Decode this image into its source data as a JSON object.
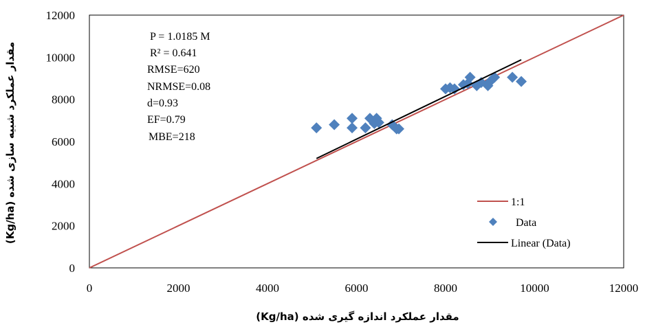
{
  "chart_data": {
    "type": "scatter",
    "xlabel": "مقدار عملکرد اندازه گیری شده (Kg/ha)",
    "ylabel": "مقدار عملکرد شبیه سازی شده (Kg/ha)",
    "xlim": [
      0,
      12000
    ],
    "ylim": [
      0,
      12000
    ],
    "xticks": [
      "0",
      "2000",
      "4000",
      "6000",
      "8000",
      "10000",
      "12000"
    ],
    "yticks": [
      "0",
      "2000",
      "4000",
      "6000",
      "8000",
      "10000",
      "12000"
    ],
    "grid": false,
    "legend_position": "bottom-right",
    "series": [
      {
        "name": "1:1",
        "kind": "line",
        "color": "#c0504d",
        "x": [
          0,
          12000
        ],
        "y": [
          0,
          12000
        ]
      },
      {
        "name": "Data",
        "kind": "scatter",
        "marker": "diamond",
        "color": "#4f81bd",
        "x": [
          5100,
          5500,
          5900,
          5900,
          6200,
          6300,
          6400,
          6450,
          6500,
          6800,
          6900,
          6950,
          8000,
          8100,
          8200,
          8400,
          8500,
          8550,
          8700,
          8800,
          8950,
          9000,
          9100,
          9500,
          9700
        ],
        "y": [
          6650,
          6800,
          6650,
          7100,
          6650,
          7100,
          6850,
          7100,
          6900,
          6800,
          6600,
          6600,
          8500,
          8550,
          8500,
          8700,
          8750,
          9050,
          8650,
          8800,
          8650,
          8850,
          9050,
          9050,
          8850
        ]
      },
      {
        "name": "Linear (Data)",
        "kind": "line",
        "color": "#000000",
        "x": [
          5100,
          9700
        ],
        "y": [
          5194,
          9880
        ]
      }
    ],
    "annotations": [
      "P = 1.0185 M",
      "R² = 0.641",
      "RMSE=620",
      "NRMSE=0.08",
      "d=0.93",
      "EF=0.79",
      "MBE=218"
    ]
  }
}
